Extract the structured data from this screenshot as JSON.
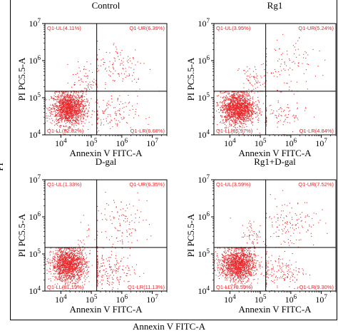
{
  "figure": {
    "outer_x_label": "Annexin V FITC-A",
    "outer_y_label": "PI"
  },
  "chart_data": [
    {
      "type": "scatter",
      "title": "Control",
      "xlabel": "Annexin V FITC-A",
      "ylabel": "PI PC5.5-A",
      "x_scale": "log",
      "y_scale": "log",
      "xlim": [
        3000,
        30000000
      ],
      "ylim": [
        10000,
        10000000
      ],
      "x_ticks": [
        {
          "v": 10000,
          "label": "10^4"
        },
        {
          "v": 100000,
          "label": "10^5"
        },
        {
          "v": 1000000,
          "label": "10^6"
        },
        {
          "v": 10000000,
          "label": "10^7"
        }
      ],
      "y_ticks": [
        {
          "v": 10000,
          "label": "10^4"
        },
        {
          "v": 100000,
          "label": "10^5"
        },
        {
          "v": 1000000,
          "label": "10^6"
        },
        {
          "v": 10000000,
          "label": "10^7"
        }
      ],
      "gate_x": 150000,
      "gate_y": 150000,
      "quadrants": {
        "UL": "Q1-UL(4.11%)",
        "UR": "Q1-UR(6.39%)",
        "LL": "Q1-LL(82.82%)",
        "LR": "Q1-LR(6.68%)"
      },
      "percentages": {
        "UL": 4.11,
        "UR": 6.39,
        "LL": 82.82,
        "LR": 6.68
      },
      "point_color": "#e8282b"
    },
    {
      "type": "scatter",
      "title": "Rg1",
      "xlabel": "Annexin V FITC-A",
      "ylabel": "PI PC5.5-A",
      "x_scale": "log",
      "y_scale": "log",
      "xlim": [
        3000,
        30000000
      ],
      "ylim": [
        10000,
        10000000
      ],
      "x_ticks": [
        {
          "v": 10000,
          "label": "10^4"
        },
        {
          "v": 100000,
          "label": "10^5"
        },
        {
          "v": 1000000,
          "label": "10^6"
        },
        {
          "v": 10000000,
          "label": "10^7"
        }
      ],
      "y_ticks": [
        {
          "v": 10000,
          "label": "10^4"
        },
        {
          "v": 100000,
          "label": "10^5"
        },
        {
          "v": 1000000,
          "label": "10^6"
        },
        {
          "v": 10000000,
          "label": "10^7"
        }
      ],
      "gate_x": 150000,
      "gate_y": 150000,
      "quadrants": {
        "UL": "Q1-UL(3.95%)",
        "UR": "Q1-UR(5.24%)",
        "LL": "Q1-LL(85.97%)",
        "LR": "Q1-LR(4.84%)"
      },
      "percentages": {
        "UL": 3.95,
        "UR": 5.24,
        "LL": 85.97,
        "LR": 4.84
      },
      "point_color": "#e8282b"
    },
    {
      "type": "scatter",
      "title": "D-gal",
      "xlabel": "Annexin V FITC-A",
      "ylabel": "PI PC5.5-A",
      "x_scale": "log",
      "y_scale": "log",
      "xlim": [
        3000,
        30000000
      ],
      "ylim": [
        10000,
        10000000
      ],
      "x_ticks": [
        {
          "v": 10000,
          "label": "10^4"
        },
        {
          "v": 100000,
          "label": "10^5"
        },
        {
          "v": 1000000,
          "label": "10^6"
        },
        {
          "v": 10000000,
          "label": "10^7"
        }
      ],
      "y_ticks": [
        {
          "v": 10000,
          "label": "10^4"
        },
        {
          "v": 100000,
          "label": "10^5"
        },
        {
          "v": 1000000,
          "label": "10^6"
        },
        {
          "v": 10000000,
          "label": "10^7"
        }
      ],
      "gate_x": 150000,
      "gate_y": 150000,
      "quadrants": {
        "UL": "Q1-UL(1.33%)",
        "UR": "Q1-UR(6.35%)",
        "LL": "Q1-LL(81.19%)",
        "LR": "Q1-LR(11.13%)"
      },
      "percentages": {
        "UL": 1.33,
        "UR": 6.35,
        "LL": 81.19,
        "LR": 11.13
      },
      "point_color": "#e8282b"
    },
    {
      "type": "scatter",
      "title": "Rg1+D-gal",
      "xlabel": "Annexin V FITC-A",
      "ylabel": "PI PC5.5-A",
      "x_scale": "log",
      "y_scale": "log",
      "xlim": [
        3000,
        30000000
      ],
      "ylim": [
        10000,
        10000000
      ],
      "x_ticks": [
        {
          "v": 10000,
          "label": "10^4"
        },
        {
          "v": 100000,
          "label": "10^5"
        },
        {
          "v": 1000000,
          "label": "10^6"
        },
        {
          "v": 10000000,
          "label": "10^7"
        }
      ],
      "y_ticks": [
        {
          "v": 10000,
          "label": "10^4"
        },
        {
          "v": 100000,
          "label": "10^5"
        },
        {
          "v": 1000000,
          "label": "10^6"
        },
        {
          "v": 10000000,
          "label": "10^7"
        }
      ],
      "gate_x": 150000,
      "gate_y": 150000,
      "quadrants": {
        "UL": "Q1-UL(3.59%)",
        "UR": "Q1-UR(7.52%)",
        "LL": "Q1-LL(79.59%)",
        "LR": "Q1-LR(9.30%)"
      },
      "percentages": {
        "UL": 3.59,
        "UR": 7.52,
        "LL": 79.59,
        "LR": 9.3
      },
      "point_color": "#e8282b"
    }
  ]
}
